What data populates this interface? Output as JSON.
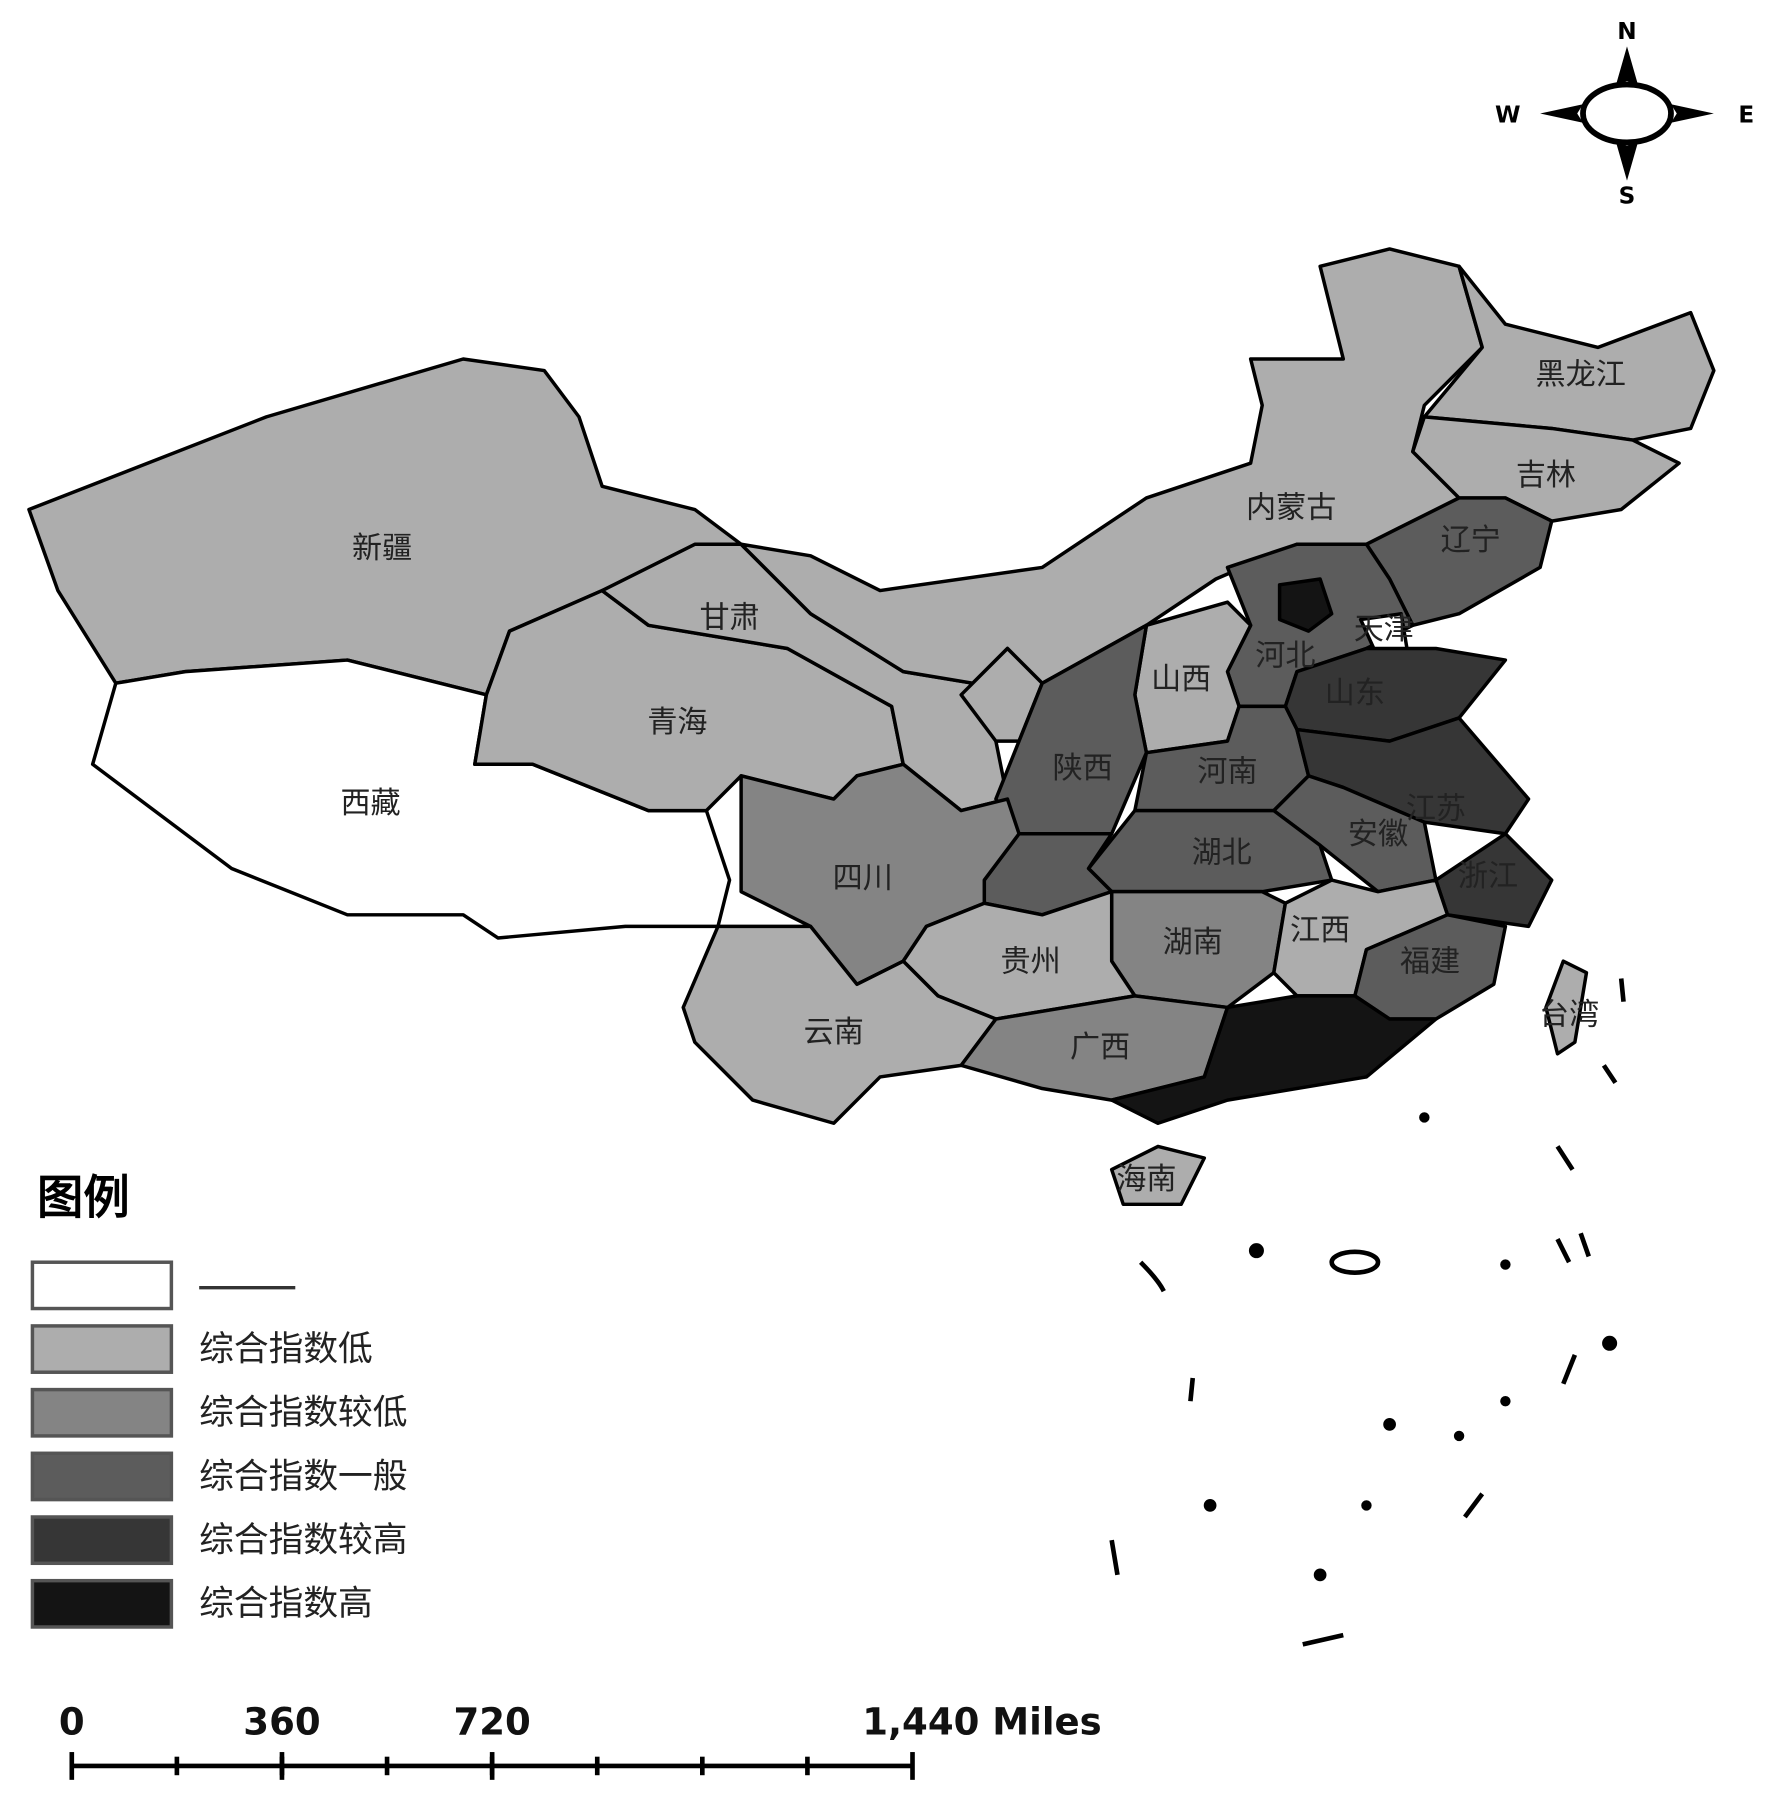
{
  "map": {
    "provinces": [
      {
        "label": "新疆",
        "level": 1
      },
      {
        "label": "西藏",
        "level": 0
      },
      {
        "label": "青海",
        "level": 1
      },
      {
        "label": "甘肃",
        "level": 1
      },
      {
        "label": "内蒙古",
        "level": 1
      },
      {
        "label": "黑龙江",
        "level": 1
      },
      {
        "label": "吉林",
        "level": 1
      },
      {
        "label": "辽宁",
        "level": 3
      },
      {
        "label": "河北",
        "level": 3
      },
      {
        "label": null,
        "level": 5
      },
      {
        "label": "天津",
        "level": 0
      },
      {
        "label": "山西",
        "level": 1
      },
      {
        "label": "山东",
        "level": 4
      },
      {
        "label": null,
        "level": 1
      },
      {
        "label": "陕西",
        "level": 3
      },
      {
        "label": "河南",
        "level": 3
      },
      {
        "label": "江苏",
        "level": 4
      },
      {
        "label": "安徽",
        "level": 3
      },
      {
        "label": "浙江",
        "level": 4
      },
      {
        "label": "湖北",
        "level": 3
      },
      {
        "label": null,
        "level": 3
      },
      {
        "label": "四川",
        "level": 2
      },
      {
        "label": "湖南",
        "level": 2
      },
      {
        "label": "江西",
        "level": 1
      },
      {
        "label": "福建",
        "level": 3
      },
      {
        "label": "贵州",
        "level": 1
      },
      {
        "label": "云南",
        "level": 1
      },
      {
        "label": "广西",
        "level": 2
      },
      {
        "label": null,
        "level": 5
      },
      {
        "label": "海南",
        "level": 1
      },
      {
        "label": "台湾",
        "level": 1
      }
    ]
  },
  "compass": {
    "n": "N",
    "s": "S",
    "e": "E",
    "w": "W"
  },
  "legend": {
    "title": "图例",
    "items": [
      {
        "label": null,
        "color": "#ffffff"
      },
      {
        "label": "综合指数低",
        "color": "#adadad"
      },
      {
        "label": "综合指数较低",
        "color": "#848484"
      },
      {
        "label": "综合指数一般",
        "color": "#5c5c5c"
      },
      {
        "label": "综合指数较高",
        "color": "#363636"
      },
      {
        "label": "综合指数高",
        "color": "#141414"
      }
    ]
  },
  "scale_bar": {
    "ticks": [
      0,
      360,
      720,
      {
        "value": 1440,
        "label": "1,440 Miles"
      }
    ]
  }
}
